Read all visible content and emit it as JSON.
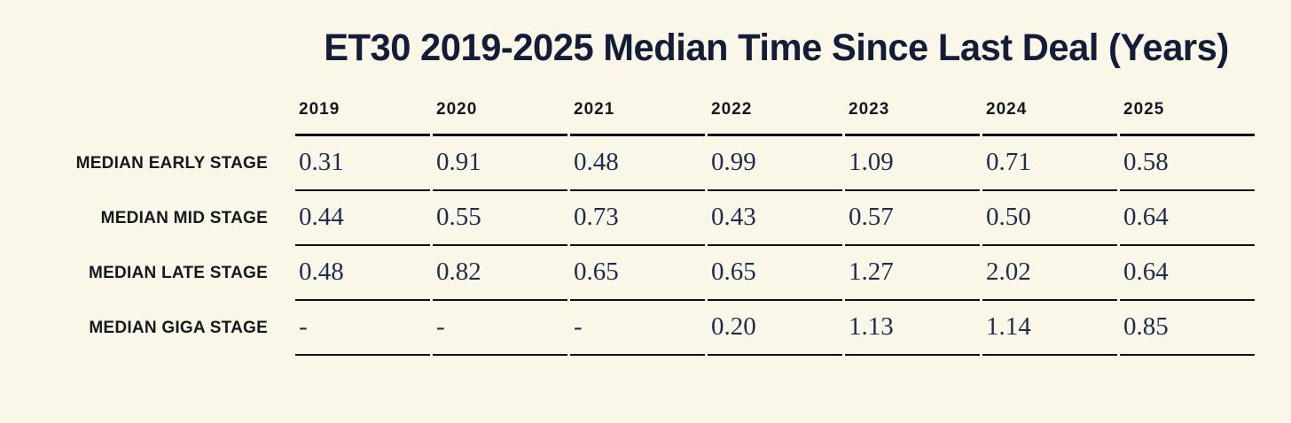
{
  "title": "ET30 2019-2025 Median Time Since Last Deal (Years)",
  "colors": {
    "background": "#faf7e8",
    "title_text": "#141d38",
    "label_text": "#15181f",
    "value_text": "#1e2c4d",
    "rule": "#0e1015"
  },
  "table": {
    "columns": [
      "2019",
      "2020",
      "2021",
      "2022",
      "2023",
      "2024",
      "2025"
    ],
    "rows": [
      {
        "label": "MEDIAN EARLY STAGE",
        "values": [
          "0.31",
          "0.91",
          "0.48",
          "0.99",
          "1.09",
          "0.71",
          "0.58"
        ]
      },
      {
        "label": "MEDIAN MID STAGE",
        "values": [
          "0.44",
          "0.55",
          "0.73",
          "0.43",
          "0.57",
          "0.50",
          "0.64"
        ]
      },
      {
        "label": "MEDIAN LATE STAGE",
        "values": [
          "0.48",
          "0.82",
          "0.65",
          "0.65",
          "1.27",
          "2.02",
          "0.64"
        ]
      },
      {
        "label": "MEDIAN GIGA STAGE",
        "values": [
          "-",
          "-",
          "-",
          "0.20",
          "1.13",
          "1.14",
          "0.85"
        ]
      }
    ]
  },
  "chart_data": {
    "type": "table",
    "title": "ET30 2019-2025 Median Time Since Last Deal (Years)",
    "units": "years",
    "columns": [
      "2019",
      "2020",
      "2021",
      "2022",
      "2023",
      "2024",
      "2025"
    ],
    "rows": [
      {
        "label": "Median Early Stage",
        "values": [
          0.31,
          0.91,
          0.48,
          0.99,
          1.09,
          0.71,
          0.58
        ]
      },
      {
        "label": "Median Mid Stage",
        "values": [
          0.44,
          0.55,
          0.73,
          0.43,
          0.57,
          0.5,
          0.64
        ]
      },
      {
        "label": "Median Late Stage",
        "values": [
          0.48,
          0.82,
          0.65,
          0.65,
          1.27,
          2.02,
          0.64
        ]
      },
      {
        "label": "Median Giga Stage",
        "values": [
          null,
          null,
          null,
          0.2,
          1.13,
          1.14,
          0.85
        ]
      }
    ]
  }
}
